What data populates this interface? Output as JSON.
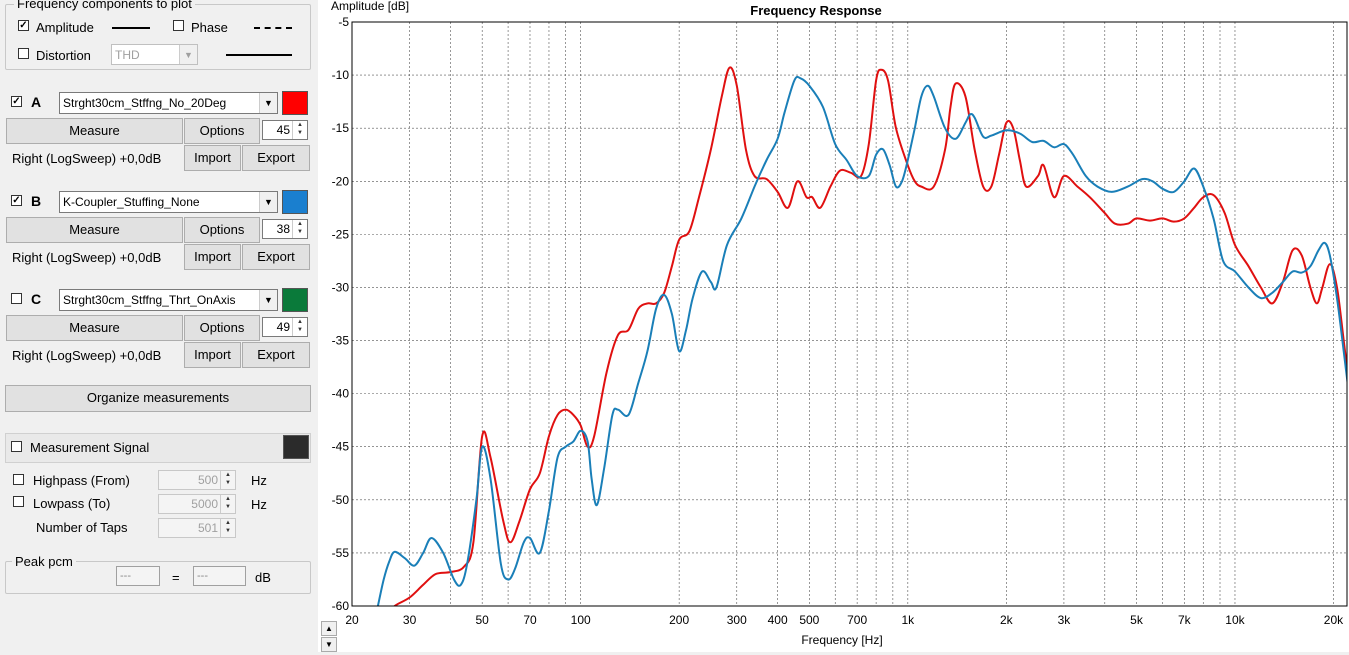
{
  "components_group": {
    "title": "Frequency components to plot",
    "amplitude": {
      "label": "Amplitude",
      "checked": true
    },
    "phase": {
      "label": "Phase",
      "checked": false
    },
    "distortion": {
      "label": "Distortion",
      "checked": false
    },
    "distortion_type": "THD"
  },
  "measurements": [
    {
      "letter": "A",
      "checked": true,
      "name": "Strght30cm_Stffng_No_20Deg",
      "color": "#ff0000",
      "measure_label": "Measure",
      "options_label": "Options",
      "spin_value": "45",
      "info": "Right (LogSweep) +0,0dB",
      "import_label": "Import",
      "export_label": "Export"
    },
    {
      "letter": "B",
      "checked": true,
      "name": "K-Coupler_Stuffing_None",
      "color": "#1a7fcf",
      "measure_label": "Measure",
      "options_label": "Options",
      "spin_value": "38",
      "info": "Right (LogSweep) +0,0dB",
      "import_label": "Import",
      "export_label": "Export"
    },
    {
      "letter": "C",
      "checked": false,
      "name": "Strght30cm_Stffng_Thrt_OnAxis",
      "color": "#0a7a3a",
      "measure_label": "Measure",
      "options_label": "Options",
      "spin_value": "49",
      "info": "Right (LogSweep) +0,0dB",
      "import_label": "Import",
      "export_label": "Export"
    }
  ],
  "organize_label": "Organize measurements",
  "signal": {
    "label": "Measurement Signal",
    "checked": false,
    "color": "#2b2b2b",
    "highpass": {
      "label": "Highpass (From)",
      "value": "500",
      "unit": "Hz"
    },
    "lowpass": {
      "label": "Lowpass (To)",
      "value": "5000",
      "unit": "Hz"
    },
    "taps": {
      "label": "Number of Taps",
      "value": "501"
    }
  },
  "peak": {
    "title": "Peak pcm",
    "left": "---",
    "equals": "=",
    "right": "---",
    "unit": "dB"
  },
  "chart_data": {
    "type": "line",
    "title": "Frequency Response",
    "ylabel": "Amplitude [dB]",
    "xlabel": "Frequency [Hz]",
    "xscale": "log",
    "xlim": [
      20,
      22000
    ],
    "ylim": [
      -60,
      -5
    ],
    "grid": true,
    "x_ticks": [
      20,
      30,
      50,
      70,
      100,
      200,
      300,
      400,
      500,
      700,
      1000,
      2000,
      3000,
      5000,
      7000,
      10000,
      20000
    ],
    "x_tick_labels": [
      "20",
      "30",
      "50",
      "70",
      "100",
      "200",
      "300",
      "400",
      "500",
      "700",
      "1k",
      "2k",
      "3k",
      "5k",
      "7k",
      "10k",
      "20k"
    ],
    "y_ticks": [
      -5,
      -10,
      -15,
      -20,
      -25,
      -30,
      -35,
      -40,
      -45,
      -50,
      -55,
      -60
    ],
    "series": [
      {
        "color": "#e01010",
        "points": [
          [
            25,
            -61
          ],
          [
            27,
            -60
          ],
          [
            30,
            -59.2
          ],
          [
            33,
            -58
          ],
          [
            36,
            -57
          ],
          [
            40,
            -56.8
          ],
          [
            44,
            -56.3
          ],
          [
            47,
            -54
          ],
          [
            50,
            -44
          ],
          [
            53,
            -46
          ],
          [
            58,
            -52
          ],
          [
            61,
            -54
          ],
          [
            65,
            -52
          ],
          [
            70,
            -49
          ],
          [
            75,
            -47.5
          ],
          [
            80,
            -44
          ],
          [
            85,
            -42
          ],
          [
            90,
            -41.5
          ],
          [
            95,
            -42
          ],
          [
            100,
            -43
          ],
          [
            105,
            -45
          ],
          [
            110,
            -44
          ],
          [
            120,
            -38
          ],
          [
            130,
            -34.5
          ],
          [
            140,
            -34
          ],
          [
            150,
            -32
          ],
          [
            160,
            -31.5
          ],
          [
            170,
            -31.5
          ],
          [
            180,
            -30.5
          ],
          [
            190,
            -28
          ],
          [
            200,
            -25.5
          ],
          [
            215,
            -24.7
          ],
          [
            230,
            -21.5
          ],
          [
            250,
            -17
          ],
          [
            270,
            -12
          ],
          [
            285,
            -9.3
          ],
          [
            300,
            -11
          ],
          [
            320,
            -17
          ],
          [
            340,
            -19.5
          ],
          [
            370,
            -19.8
          ],
          [
            400,
            -21
          ],
          [
            430,
            -22.5
          ],
          [
            460,
            -20
          ],
          [
            490,
            -21.5
          ],
          [
            510,
            -21.5
          ],
          [
            540,
            -22.5
          ],
          [
            580,
            -20.5
          ],
          [
            620,
            -19
          ],
          [
            670,
            -19.2
          ],
          [
            720,
            -19.5
          ],
          [
            760,
            -16.5
          ],
          [
            800,
            -10.5
          ],
          [
            830,
            -9.5
          ],
          [
            870,
            -10.5
          ],
          [
            920,
            -15
          ],
          [
            1000,
            -18.5
          ],
          [
            1050,
            -20
          ],
          [
            1100,
            -20.5
          ],
          [
            1200,
            -20.5
          ],
          [
            1300,
            -17
          ],
          [
            1350,
            -13
          ],
          [
            1400,
            -10.8
          ],
          [
            1500,
            -12
          ],
          [
            1600,
            -17
          ],
          [
            1700,
            -20.5
          ],
          [
            1800,
            -20.5
          ],
          [
            1900,
            -17.5
          ],
          [
            2000,
            -14.5
          ],
          [
            2100,
            -15
          ],
          [
            2200,
            -18
          ],
          [
            2300,
            -20.5
          ],
          [
            2500,
            -19.5
          ],
          [
            2600,
            -18.5
          ],
          [
            2800,
            -21.5
          ],
          [
            3000,
            -19.5
          ],
          [
            3300,
            -20.5
          ],
          [
            3600,
            -21.5
          ],
          [
            4000,
            -23
          ],
          [
            4300,
            -24
          ],
          [
            4700,
            -24
          ],
          [
            5000,
            -23.5
          ],
          [
            5500,
            -23.7
          ],
          [
            6000,
            -23.5
          ],
          [
            6500,
            -23.8
          ],
          [
            7000,
            -23.5
          ],
          [
            7500,
            -22.5
          ],
          [
            8000,
            -21.5
          ],
          [
            8600,
            -21.3
          ],
          [
            9300,
            -23
          ],
          [
            10000,
            -26
          ],
          [
            11000,
            -28
          ],
          [
            12000,
            -30
          ],
          [
            13000,
            -31.5
          ],
          [
            14000,
            -29.5
          ],
          [
            15000,
            -26.5
          ],
          [
            16000,
            -27
          ],
          [
            17000,
            -30
          ],
          [
            17800,
            -31.5
          ],
          [
            18500,
            -30
          ],
          [
            19500,
            -27.8
          ],
          [
            20500,
            -30
          ],
          [
            21500,
            -35
          ],
          [
            22500,
            -40
          ],
          [
            23500,
            -44.5
          ]
        ]
      },
      {
        "color": "#1a7fb8",
        "points": [
          [
            24,
            -60
          ],
          [
            25,
            -57.5
          ],
          [
            26,
            -55.8
          ],
          [
            27,
            -54.9
          ],
          [
            29,
            -55.5
          ],
          [
            31,
            -56.2
          ],
          [
            33,
            -55
          ],
          [
            35,
            -53.6
          ],
          [
            38,
            -55
          ],
          [
            41,
            -57.5
          ],
          [
            43,
            -58
          ],
          [
            45,
            -56
          ],
          [
            48,
            -50
          ],
          [
            50,
            -45
          ],
          [
            53,
            -48
          ],
          [
            57,
            -56
          ],
          [
            60,
            -57.5
          ],
          [
            63,
            -56.5
          ],
          [
            67,
            -54
          ],
          [
            70,
            -53.6
          ],
          [
            75,
            -55
          ],
          [
            80,
            -51
          ],
          [
            85,
            -46
          ],
          [
            90,
            -45
          ],
          [
            95,
            -44.5
          ],
          [
            100,
            -43.5
          ],
          [
            105,
            -44.5
          ],
          [
            108,
            -48
          ],
          [
            112,
            -50.5
          ],
          [
            118,
            -47
          ],
          [
            125,
            -42
          ],
          [
            130,
            -41.5
          ],
          [
            140,
            -42
          ],
          [
            150,
            -39
          ],
          [
            160,
            -36
          ],
          [
            170,
            -32
          ],
          [
            180,
            -30.7
          ],
          [
            190,
            -32.5
          ],
          [
            200,
            -36
          ],
          [
            210,
            -34
          ],
          [
            220,
            -31
          ],
          [
            235,
            -28.5
          ],
          [
            250,
            -29.5
          ],
          [
            260,
            -30
          ],
          [
            280,
            -26
          ],
          [
            310,
            -23.5
          ],
          [
            340,
            -20.5
          ],
          [
            370,
            -18
          ],
          [
            400,
            -16
          ],
          [
            420,
            -13.5
          ],
          [
            450,
            -10.5
          ],
          [
            470,
            -10.3
          ],
          [
            500,
            -11
          ],
          [
            550,
            -13
          ],
          [
            600,
            -16.5
          ],
          [
            650,
            -18
          ],
          [
            700,
            -19.5
          ],
          [
            760,
            -19.5
          ],
          [
            800,
            -17.5
          ],
          [
            840,
            -17
          ],
          [
            880,
            -18.5
          ],
          [
            920,
            -20.5
          ],
          [
            960,
            -20
          ],
          [
            1000,
            -18
          ],
          [
            1050,
            -15
          ],
          [
            1100,
            -12
          ],
          [
            1150,
            -11
          ],
          [
            1200,
            -12
          ],
          [
            1300,
            -15
          ],
          [
            1400,
            -16
          ],
          [
            1500,
            -14.5
          ],
          [
            1550,
            -13.7
          ],
          [
            1600,
            -14
          ],
          [
            1700,
            -15.8
          ],
          [
            1800,
            -15.7
          ],
          [
            2000,
            -15.2
          ],
          [
            2200,
            -15.5
          ],
          [
            2400,
            -16.3
          ],
          [
            2600,
            -16.2
          ],
          [
            2800,
            -16.8
          ],
          [
            3000,
            -16.5
          ],
          [
            3200,
            -17.5
          ],
          [
            3500,
            -19.5
          ],
          [
            3800,
            -20.5
          ],
          [
            4200,
            -21
          ],
          [
            4700,
            -20.5
          ],
          [
            5200,
            -19.8
          ],
          [
            5600,
            -20
          ],
          [
            6000,
            -20.7
          ],
          [
            6500,
            -21
          ],
          [
            7000,
            -20
          ],
          [
            7500,
            -18.8
          ],
          [
            8000,
            -20.5
          ],
          [
            8600,
            -23.5
          ],
          [
            9200,
            -27.5
          ],
          [
            10000,
            -28.5
          ],
          [
            11000,
            -30
          ],
          [
            12000,
            -31
          ],
          [
            13000,
            -30.5
          ],
          [
            14000,
            -29.5
          ],
          [
            15000,
            -28.5
          ],
          [
            16000,
            -28.6
          ],
          [
            17000,
            -28
          ],
          [
            18000,
            -26.5
          ],
          [
            18800,
            -25.8
          ],
          [
            19500,
            -27
          ],
          [
            20500,
            -31
          ],
          [
            21500,
            -36
          ],
          [
            22500,
            -41
          ],
          [
            23500,
            -46
          ]
        ]
      }
    ]
  },
  "bottom_arrows": {
    "up": "▲",
    "down": "▼"
  }
}
